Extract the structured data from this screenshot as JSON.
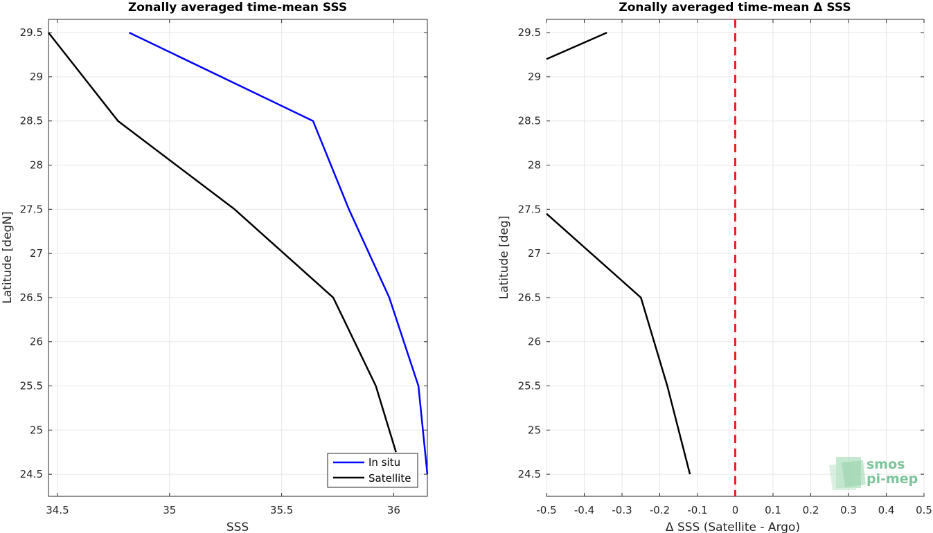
{
  "chart_data": [
    {
      "type": "line",
      "title": "Zonally averaged time-mean SSS",
      "xlabel": "SSS",
      "ylabel": "Latitude [degN]",
      "xlim": [
        34.46,
        36.15
      ],
      "ylim": [
        24.25,
        29.65
      ],
      "xticks": [
        34.5,
        35,
        35.5,
        36
      ],
      "xtick_labels": [
        "34.5",
        "35",
        "35.5",
        "36"
      ],
      "yticks": [
        24.5,
        25,
        25.5,
        26,
        26.5,
        27,
        27.5,
        28,
        28.5,
        29,
        29.5
      ],
      "ytick_labels": [
        "24.5",
        "25",
        "25.5",
        "26",
        "26.5",
        "27",
        "27.5",
        "28",
        "28.5",
        "29",
        "29.5"
      ],
      "grid": true,
      "legend": "bottom-right",
      "series": [
        {
          "name": "In situ",
          "color": "#0000ff",
          "points": [
            {
              "x": 36.15,
              "y": 24.5
            },
            {
              "x": 36.11,
              "y": 25.5
            },
            {
              "x": 35.98,
              "y": 26.5
            },
            {
              "x": 35.8,
              "y": 27.5
            },
            {
              "x": 35.64,
              "y": 28.5
            },
            {
              "x": 34.82,
              "y": 29.5
            }
          ]
        },
        {
          "name": "Satellite",
          "color": "#000000",
          "points": [
            {
              "x": 36.01,
              "y": 24.75
            },
            {
              "x": 35.92,
              "y": 25.5
            },
            {
              "x": 35.73,
              "y": 26.5
            },
            {
              "x": 35.29,
              "y": 27.5
            },
            {
              "x": 34.77,
              "y": 28.5
            },
            {
              "x": 34.46,
              "y": 29.5
            }
          ]
        }
      ]
    },
    {
      "type": "line",
      "title": "Zonally averaged time-mean Δ SSS",
      "xlabel": "Δ SSS (Satellite - Argo)",
      "ylabel": "Latitude [deg]",
      "xlim": [
        -0.5,
        0.5
      ],
      "ylim": [
        24.25,
        29.65
      ],
      "xticks": [
        -0.5,
        -0.4,
        -0.3,
        -0.2,
        -0.1,
        0,
        0.1,
        0.2,
        0.3,
        0.4,
        0.5
      ],
      "xtick_labels": [
        "-0.5",
        "-0.4",
        "-0.3",
        "-0.2",
        "-0.1",
        "0",
        "0.1",
        "0.2",
        "0.3",
        "0.4",
        "0.5"
      ],
      "yticks": [
        24.5,
        25,
        25.5,
        26,
        26.5,
        27,
        27.5,
        28,
        28.5,
        29,
        29.5
      ],
      "ytick_labels": [
        "24.5",
        "25",
        "25.5",
        "26",
        "26.5",
        "27",
        "27.5",
        "28",
        "28.5",
        "29",
        "29.5"
      ],
      "grid": true,
      "reference_line": {
        "x": 0,
        "color": "#e8231f",
        "style": "dashed"
      },
      "series": [
        {
          "color": "#000000",
          "points": [
            {
              "x": -0.12,
              "y": 24.5
            },
            {
              "x": -0.18,
              "y": 25.5
            },
            {
              "x": -0.25,
              "y": 26.5
            },
            {
              "x": -0.5,
              "y": 27.45
            }
          ]
        },
        {
          "color": "#000000",
          "points": [
            {
              "x": -0.5,
              "y": 29.2
            },
            {
              "x": -0.34,
              "y": 29.5
            }
          ]
        }
      ]
    }
  ],
  "logo": {
    "line1": "smos",
    "line2": "pi-mep"
  }
}
